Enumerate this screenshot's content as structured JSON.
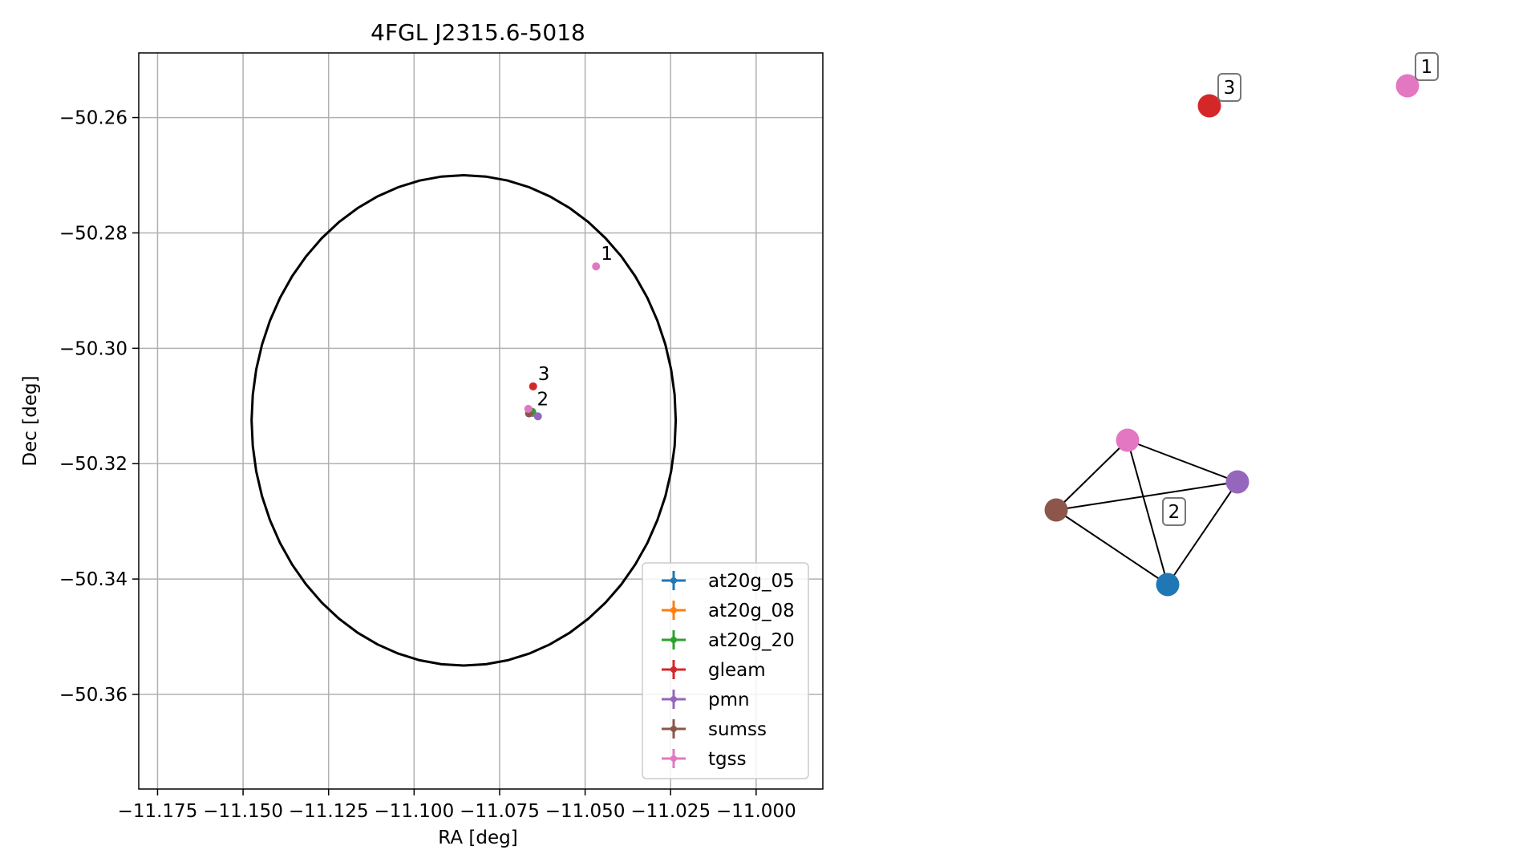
{
  "chart_data": [
    {
      "type": "scatter",
      "title": "4FGL J2315.6-5018",
      "xlabel": "RA [deg]",
      "ylabel": "Dec [deg]",
      "xlim": [
        -11.1805,
        -10.9805
      ],
      "ylim": [
        -50.3764,
        -50.2488
      ],
      "xticks": [
        -11.175,
        -11.15,
        -11.125,
        -11.1,
        -11.075,
        -11.05,
        -11.025,
        -11.0
      ],
      "xtick_labels": [
        "−11.175",
        "−11.150",
        "−11.125",
        "−11.100",
        "−11.075",
        "−11.050",
        "−11.025",
        "−11.000"
      ],
      "yticks": [
        -50.26,
        -50.28,
        -50.3,
        -50.32,
        -50.34,
        -50.36
      ],
      "ytick_labels": [
        "−50.26",
        "−50.28",
        "−50.30",
        "−50.32",
        "−50.34",
        "−50.36"
      ],
      "grid": true,
      "ellipse": {
        "center_x": -11.0855,
        "center_y": -50.3125,
        "semi_x": 0.062,
        "semi_y": 0.0425,
        "color": "#000000"
      },
      "series": [
        {
          "name": "at20g_05",
          "color": "#1f77b4",
          "points": [
            {
              "x": -11.0654,
              "y": -50.3112
            }
          ]
        },
        {
          "name": "at20g_08",
          "color": "#ff7f0e",
          "points": [
            {
              "x": -11.0656,
              "y": -50.3111
            }
          ]
        },
        {
          "name": "at20g_20",
          "color": "#2ca02c",
          "points": [
            {
              "x": -11.0655,
              "y": -50.311
            }
          ]
        },
        {
          "name": "gleam",
          "color": "#d62728",
          "points": [
            {
              "x": -11.0652,
              "y": -50.3066
            }
          ]
        },
        {
          "name": "pmn",
          "color": "#9467bd",
          "points": [
            {
              "x": -11.0638,
              "y": -50.3118
            }
          ]
        },
        {
          "name": "sumss",
          "color": "#8c564b",
          "points": [
            {
              "x": -11.0664,
              "y": -50.3113
            }
          ]
        },
        {
          "name": "tgss",
          "color": "#e377c2",
          "points": [
            {
              "x": -11.0666,
              "y": -50.3105
            },
            {
              "x": -11.0468,
              "y": -50.2858
            }
          ]
        }
      ],
      "annotations": [
        {
          "text": "1",
          "x": -11.0468,
          "y": -50.2858
        },
        {
          "text": "3",
          "x": -11.0652,
          "y": -50.3066
        },
        {
          "text": "2",
          "x": -11.0655,
          "y": -50.311
        }
      ],
      "legend_position": "lower-right"
    },
    {
      "type": "network",
      "nodes": [
        {
          "label": "1",
          "color": "#e377c2"
        },
        {
          "label": "3",
          "color": "#d62728"
        },
        {
          "label": "2",
          "color": "#e377c2"
        },
        {
          "label": "2",
          "color": "#9467bd"
        },
        {
          "label": "2",
          "color": "#8c564b"
        },
        {
          "label": "2",
          "color": "#1f77b4"
        }
      ],
      "edges": [
        [
          2,
          3
        ],
        [
          2,
          4
        ],
        [
          2,
          5
        ],
        [
          3,
          4
        ],
        [
          3,
          5
        ],
        [
          4,
          5
        ]
      ],
      "group_labels": [
        "1",
        "3",
        "2"
      ]
    }
  ]
}
